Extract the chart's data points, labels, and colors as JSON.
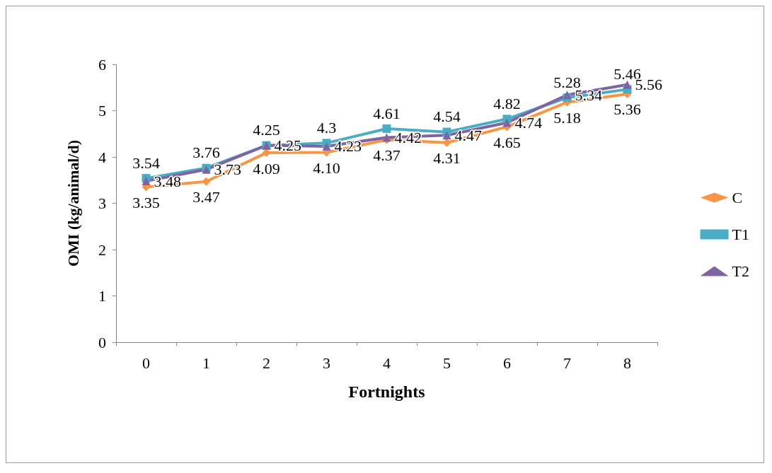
{
  "chart_data": {
    "type": "line",
    "xlabel": "Fortnights",
    "ylabel": "OMI (kg/animal/d)",
    "categories": [
      "0",
      "1",
      "2",
      "3",
      "4",
      "5",
      "6",
      "7",
      "8"
    ],
    "ylim": [
      0,
      6
    ],
    "yticks": [
      0,
      1,
      2,
      3,
      4,
      5,
      6
    ],
    "grid": false,
    "legend": "right",
    "series": [
      {
        "name": "C",
        "color": "#f79646",
        "marker": "diamond",
        "values": [
          3.35,
          3.47,
          4.09,
          4.1,
          4.37,
          4.31,
          4.65,
          5.18,
          5.36
        ],
        "value_labels": [
          "3.35",
          "3.47",
          "4.09",
          "4.10",
          "4.37",
          "4.31",
          "4.65",
          "5.18",
          "5.36"
        ]
      },
      {
        "name": "T1",
        "color": "#4bacc6",
        "marker": "square",
        "values": [
          3.54,
          3.76,
          4.25,
          4.3,
          4.61,
          4.54,
          4.82,
          5.28,
          5.46
        ],
        "value_labels": [
          "3.54",
          "3.76",
          "4.25",
          "4.3",
          "4.61",
          "4.54",
          "4.82",
          "5.28",
          "5.46"
        ]
      },
      {
        "name": "T2",
        "color": "#8064a2",
        "marker": "triangle",
        "values": [
          3.48,
          3.73,
          4.25,
          4.23,
          4.42,
          4.47,
          4.74,
          5.34,
          5.56
        ],
        "value_labels": [
          "3.48",
          "3.73",
          "4.25",
          "4.23",
          "4.42",
          "4.47",
          "4.74",
          "5.34",
          "5.56"
        ]
      }
    ]
  }
}
